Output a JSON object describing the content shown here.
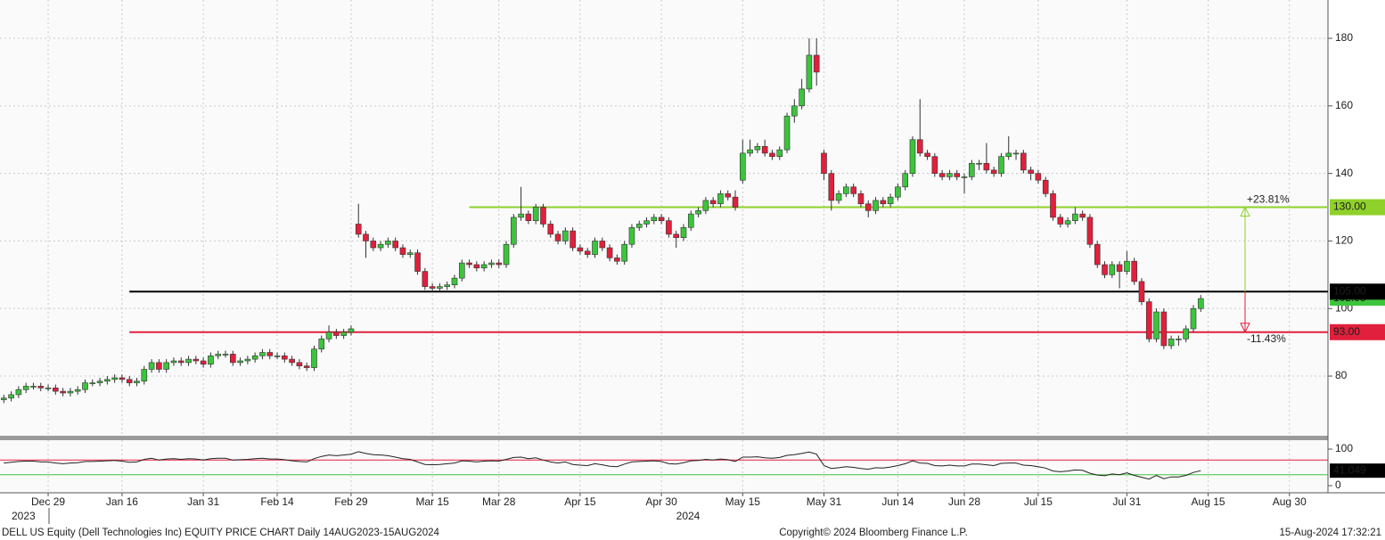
{
  "chart_data": {
    "type": "candlestick",
    "up_color": "#3cc43c",
    "down_color": "#e0203c",
    "ylim": [
      62.6,
      191.35
    ],
    "yticks": [
      80,
      100,
      120,
      140,
      160,
      180
    ],
    "grid": true,
    "categories": [
      null,
      null,
      null,
      null,
      null,
      null,
      "Dec 29",
      null,
      null,
      null,
      null,
      null,
      null,
      null,
      null,
      null,
      "Jan 16",
      null,
      null,
      null,
      null,
      null,
      null,
      null,
      null,
      null,
      null,
      "Jan 31",
      null,
      null,
      null,
      null,
      null,
      null,
      null,
      null,
      null,
      "Feb 14",
      null,
      null,
      null,
      null,
      null,
      null,
      null,
      null,
      null,
      "Feb 29",
      null,
      null,
      null,
      null,
      null,
      null,
      null,
      null,
      null,
      null,
      "Mar 15",
      null,
      null,
      null,
      null,
      null,
      null,
      null,
      null,
      "Mar 28",
      null,
      null,
      null,
      null,
      null,
      null,
      null,
      null,
      null,
      null,
      "Apr 15",
      null,
      null,
      null,
      null,
      null,
      null,
      null,
      null,
      null,
      null,
      "Apr 30",
      null,
      null,
      null,
      null,
      null,
      null,
      null,
      null,
      null,
      null,
      "May 15",
      null,
      null,
      null,
      null,
      null,
      null,
      null,
      null,
      null,
      null,
      "May 31",
      null,
      null,
      null,
      null,
      null,
      null,
      null,
      null,
      null,
      "Jun 14",
      null,
      null,
      null,
      null,
      null,
      null,
      null,
      null,
      "Jun 28",
      null,
      null,
      null,
      null,
      null,
      null,
      null,
      null,
      null,
      "Jul 15",
      null,
      null,
      null,
      null,
      null,
      null,
      null,
      null,
      null,
      null,
      null,
      "Jul 31",
      null,
      null,
      null,
      null,
      null,
      null,
      null,
      null,
      null,
      null,
      "Aug 15",
      null,
      null,
      null,
      null,
      null,
      null,
      null,
      null,
      null,
      null,
      "Aug 30",
      null,
      null,
      null,
      null,
      null
    ],
    "open": [
      73,
      73.5,
      74.5,
      76,
      77,
      77,
      76.5,
      76.5,
      75.5,
      75,
      75.5,
      76,
      78,
      78,
      78.5,
      79,
      79.5,
      79,
      78,
      78.5,
      82,
      84,
      82,
      84,
      84.5,
      84,
      85,
      84.5,
      83.5,
      86,
      86.5,
      86.5,
      84,
      84.5,
      85,
      86,
      87,
      86,
      86,
      85,
      84,
      83,
      82.5,
      88,
      91,
      93,
      92,
      93,
      125,
      122,
      120,
      118,
      119,
      120,
      118,
      116,
      116.5,
      111,
      106.5,
      106,
      106.5,
      107,
      109,
      113.5,
      113,
      112,
      113,
      113.5,
      113,
      119,
      127,
      128,
      126,
      130,
      125,
      122,
      120,
      123,
      118,
      117,
      116,
      120,
      118,
      115,
      114,
      119,
      124,
      125,
      126,
      127,
      126,
      122,
      121,
      124,
      128,
      129,
      132,
      131,
      134,
      133,
      138,
      146,
      147,
      148,
      146,
      145,
      147,
      157,
      160,
      165,
      175,
      146,
      140,
      132,
      134,
      136,
      134,
      131,
      129,
      132,
      131,
      133,
      136,
      140,
      150,
      146,
      145,
      140,
      139,
      140,
      139,
      139,
      143,
      143,
      141,
      140,
      145,
      146,
      146,
      141,
      140,
      138,
      134,
      127,
      125,
      126,
      128,
      127,
      119,
      113,
      110,
      113,
      111,
      114,
      108,
      102,
      91,
      99,
      89,
      91,
      91,
      94,
      100,
      null,
      null,
      null,
      null,
      null,
      null,
      null,
      null,
      null,
      null,
      null,
      null,
      null,
      null,
      null,
      null,
      null
    ],
    "high": [
      74.5,
      75.5,
      77,
      78,
      78,
      78,
      77.5,
      77.5,
      76.5,
      76.5,
      77,
      79,
      79,
      79.5,
      80,
      80.5,
      80.5,
      80,
      79.5,
      83,
      85,
      85,
      85,
      85.5,
      85.5,
      86,
      86,
      85.5,
      87,
      87.5,
      87.5,
      87.5,
      85.5,
      86,
      87,
      88,
      88,
      87,
      87,
      86,
      85,
      84,
      89,
      92,
      95,
      94,
      94,
      95,
      131,
      123,
      121,
      120,
      121,
      121,
      119,
      117.5,
      117.5,
      112,
      107.5,
      107.5,
      108,
      110,
      114.5,
      114.5,
      114,
      114,
      114.5,
      114.5,
      120,
      128,
      136,
      129,
      131,
      131,
      126,
      123,
      124,
      124,
      119,
      118,
      121,
      121,
      119,
      116,
      120,
      125,
      126,
      127,
      128,
      128,
      127,
      123,
      125,
      129,
      130,
      133,
      133,
      135,
      135,
      135,
      150,
      150,
      149,
      150,
      147,
      148,
      158,
      162,
      168,
      180,
      180,
      147,
      141,
      135,
      137,
      137,
      135,
      132,
      133,
      133,
      134,
      137,
      141,
      151,
      162,
      147,
      146,
      141,
      141,
      141,
      140,
      144,
      144,
      149,
      142,
      146,
      151,
      147,
      147,
      142,
      141,
      139,
      135,
      128,
      127,
      130,
      129,
      128,
      120,
      114,
      114,
      114,
      117,
      115,
      109,
      103,
      100,
      100,
      92,
      92,
      95,
      101,
      104,
      null,
      null,
      null,
      null,
      null,
      null,
      null,
      null,
      null,
      null,
      null,
      null,
      null,
      null,
      null,
      null,
      null
    ],
    "low": [
      72,
      72.5,
      73.5,
      75,
      76,
      75.5,
      75.5,
      74.5,
      74,
      74,
      74.5,
      75,
      77,
      77,
      77.5,
      78,
      78,
      77,
      77,
      77.5,
      81,
      81,
      81,
      83,
      83,
      83,
      83.5,
      82.5,
      82.5,
      85,
      85.5,
      83,
      83,
      83.5,
      84,
      85,
      85,
      85,
      84,
      83,
      82,
      81.5,
      81.5,
      87,
      90,
      91,
      91,
      92,
      121,
      115,
      117,
      117,
      118,
      117,
      115,
      115,
      110,
      105.5,
      105,
      105,
      105.5,
      106,
      108,
      112,
      111,
      111,
      112,
      112,
      112,
      118,
      126,
      125,
      125,
      124,
      121,
      119,
      119,
      117,
      116,
      115,
      115,
      117,
      114,
      113,
      113,
      118,
      123,
      124,
      125,
      125,
      121,
      118,
      120,
      123,
      127,
      128,
      130,
      130,
      132,
      129,
      137,
      145,
      146,
      145,
      144,
      144,
      146,
      155,
      159,
      164,
      166,
      138,
      129,
      131,
      133,
      133,
      130,
      127,
      128,
      130,
      130,
      132,
      135,
      139,
      145,
      144,
      139,
      138,
      138,
      138,
      134,
      138,
      141,
      140,
      139,
      139,
      144,
      144,
      140,
      138,
      137,
      133,
      126,
      124,
      124,
      125,
      126,
      118,
      112,
      109,
      109,
      106,
      110,
      107,
      101,
      90,
      90,
      88,
      88,
      89,
      90,
      93,
      99,
      null,
      null,
      null,
      null,
      null,
      null,
      null,
      null,
      null,
      null,
      null,
      null,
      null,
      null,
      null,
      null,
      null
    ],
    "close": [
      73.5,
      74.5,
      76,
      77,
      77,
      76.5,
      76.5,
      75.5,
      75,
      75.5,
      76,
      78,
      78,
      78.5,
      79,
      79.5,
      79,
      78,
      78.5,
      82,
      84,
      82,
      84,
      84.5,
      84,
      85,
      84.5,
      83.5,
      86,
      86.5,
      86.5,
      84,
      84.5,
      85,
      86,
      87,
      86,
      86,
      85,
      84,
      83,
      82.5,
      88,
      91,
      93,
      92,
      93,
      94,
      122,
      120,
      118,
      119,
      120,
      118,
      116,
      116.5,
      111,
      106.5,
      106,
      106.5,
      107,
      109,
      113.5,
      113,
      112,
      113,
      113.5,
      113,
      119,
      127,
      128,
      126,
      130,
      125,
      122,
      120,
      123,
      118,
      117,
      116,
      120,
      118,
      115,
      114,
      119,
      124,
      125,
      126,
      127,
      126,
      122,
      121,
      124,
      128,
      129,
      132,
      131,
      134,
      133,
      130,
      146,
      147,
      148,
      146,
      145,
      147,
      157,
      160,
      165,
      175,
      170,
      140,
      132,
      134,
      136,
      134,
      131,
      129,
      132,
      131,
      133,
      136,
      140,
      150,
      146,
      145,
      140,
      139,
      140,
      139,
      139,
      143,
      143,
      141,
      140,
      145,
      146,
      146,
      141,
      140,
      138,
      134,
      127,
      125,
      126,
      128,
      127,
      119,
      113,
      110,
      113,
      111,
      114,
      108,
      102,
      91,
      99,
      89,
      91,
      91,
      94,
      100,
      102.95,
      null,
      null,
      null,
      null,
      null,
      null,
      null,
      null,
      null,
      null,
      null,
      null,
      null,
      null,
      null,
      null,
      null
    ],
    "levels": [
      {
        "value": 130,
        "label": "130.00",
        "color": "#8fd12a",
        "start_index": 63,
        "change": {
          "value": 23.81,
          "label": "+23.81%"
        }
      },
      {
        "value": 105,
        "label": "105.00",
        "color": "#000000",
        "start_index": 17
      },
      {
        "value": 93,
        "label": "93.00",
        "color": "#e0203c",
        "start_index": 17,
        "change": {
          "value": -11.43,
          "label": "-11.43%"
        }
      }
    ],
    "rsi": {
      "color": "#222222",
      "ylim": [
        -19.5,
        124.4
      ],
      "yticks": [
        100,
        0
      ],
      "levels": [
        {
          "value": 70,
          "color": "#e0203c"
        },
        {
          "value": 30,
          "color": "#3cc43c"
        }
      ],
      "values": [
        62,
        64,
        66,
        67,
        67,
        65,
        65,
        62,
        60,
        62,
        63,
        66,
        66,
        67,
        68,
        69,
        67,
        64,
        65,
        72,
        75,
        70,
        73,
        74,
        72,
        74,
        73,
        70,
        74,
        75,
        75,
        70,
        71,
        72,
        74,
        75,
        73,
        73,
        71,
        68,
        66,
        65,
        74,
        80,
        84,
        82,
        84,
        86,
        93,
        88,
        85,
        84,
        82,
        78,
        74,
        72,
        65,
        58,
        57,
        58,
        60,
        62,
        68,
        67,
        65,
        67,
        68,
        67,
        72,
        77,
        78,
        74,
        76,
        70,
        65,
        62,
        65,
        58,
        56,
        55,
        60,
        57,
        53,
        52,
        59,
        65,
        66,
        67,
        68,
        66,
        60,
        59,
        63,
        68,
        69,
        72,
        70,
        73,
        71,
        66,
        78,
        78,
        79,
        76,
        75,
        77,
        83,
        85,
        88,
        92,
        86,
        55,
        47,
        49,
        52,
        50,
        47,
        45,
        49,
        48,
        51,
        55,
        60,
        68,
        62,
        61,
        55,
        54,
        56,
        54,
        54,
        59,
        59,
        57,
        55,
        61,
        62,
        62,
        56,
        55,
        52,
        48,
        40,
        38,
        40,
        43,
        42,
        34,
        29,
        27,
        32,
        30,
        35,
        28,
        23,
        18,
        28,
        19,
        24,
        24,
        28,
        36,
        41.049,
        null,
        null,
        null,
        null,
        null,
        null,
        null,
        null,
        null,
        null,
        null,
        null,
        null,
        null,
        null,
        null,
        null
      ]
    },
    "year_labels": [
      "2023",
      "2024"
    ],
    "footer": {
      "left": "DELL US Equity (Dell Technologies Inc) EQUITY PRICE CHART  Daily 14AUG2023-15AUG2024",
      "center": "Copyright© 2024 Bloomberg Finance L.P.",
      "right": "15-Aug-2024 17:32:21"
    }
  }
}
